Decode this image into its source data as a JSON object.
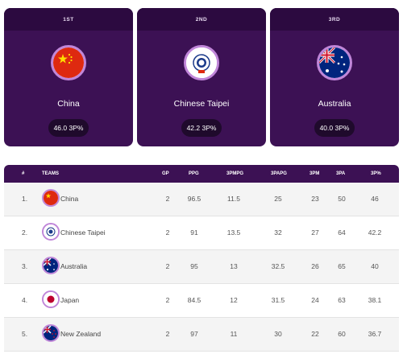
{
  "podium": [
    {
      "rank_label": "1ST",
      "country": "China",
      "stat": "46.0 3P%",
      "flag": "china-flag-icon"
    },
    {
      "rank_label": "2ND",
      "country": "Chinese Taipei",
      "stat": "42.2 3P%",
      "flag": "chinese-taipei-flag-icon"
    },
    {
      "rank_label": "3RD",
      "country": "Australia",
      "stat": "40.0 3P%",
      "flag": "australia-flag-icon"
    }
  ],
  "table": {
    "headers": {
      "rank": "#",
      "teams": "TEAMS",
      "gp": "GP",
      "ppg": "PPG",
      "tpmpg": "3PMPG",
      "tpapg": "3PAPG",
      "tpm": "3PM",
      "tpa": "3PA",
      "tpp": "3P%"
    },
    "rows": [
      {
        "rank": "1.",
        "team": "China",
        "flag": "china-flag-icon",
        "gp": "2",
        "ppg": "96.5",
        "tpmpg": "11.5",
        "tpapg": "25",
        "tpm": "23",
        "tpa": "50",
        "tpp": "46"
      },
      {
        "rank": "2.",
        "team": "Chinese Taipei",
        "flag": "chinese-taipei-flag-icon",
        "gp": "2",
        "ppg": "91",
        "tpmpg": "13.5",
        "tpapg": "32",
        "tpm": "27",
        "tpa": "64",
        "tpp": "42.2"
      },
      {
        "rank": "3.",
        "team": "Australia",
        "flag": "australia-flag-icon",
        "gp": "2",
        "ppg": "95",
        "tpmpg": "13",
        "tpapg": "32.5",
        "tpm": "26",
        "tpa": "65",
        "tpp": "40"
      },
      {
        "rank": "4.",
        "team": "Japan",
        "flag": "japan-flag-icon",
        "gp": "2",
        "ppg": "84.5",
        "tpmpg": "12",
        "tpapg": "31.5",
        "tpm": "24",
        "tpa": "63",
        "tpp": "38.1"
      },
      {
        "rank": "5.",
        "team": "New Zealand",
        "flag": "new-zealand-flag-icon",
        "gp": "2",
        "ppg": "97",
        "tpmpg": "11",
        "tpapg": "30",
        "tpm": "22",
        "tpa": "60",
        "tpp": "36.7"
      }
    ]
  },
  "colors": {
    "card_bg": "#3c1154",
    "card_header": "#2c0a40",
    "ring": "#c086d9",
    "pill": "#1f0a2c"
  }
}
